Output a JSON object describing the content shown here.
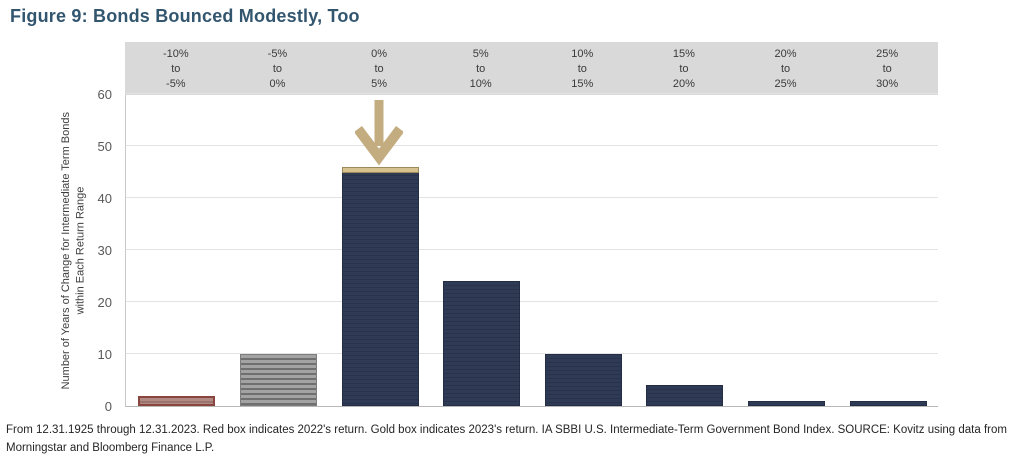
{
  "title": "Figure 9: Bonds Bounced Modestly, Too",
  "footnote": "From 12.31.1925 through 12.31.2023. Red box indicates 2022's return. Gold box indicates 2023's return. IA SBBI U.S. Intermediate-Term Government Bond Index. SOURCE: Kovitz using data from Morningstar and Bloomberg Finance L.P.",
  "chart_data": {
    "type": "bar",
    "title": "Figure 9: Bonds Bounced Modestly, Too",
    "categories": [
      "-10%\nto\n-5%",
      "-5%\nto\n0%",
      "0%\nto\n5%",
      "5%\nto\n10%",
      "10%\nto\n15%",
      "15%\nto\n20%",
      "20%\nto\n25%",
      "25%\nto\n30%"
    ],
    "values": [
      2,
      10,
      46,
      24,
      10,
      4,
      1,
      1
    ],
    "xlabel": "",
    "ylabel": "Number of Years of Change for Intermediate Term Bonds\nwithin Each Return Range",
    "ylim": [
      0,
      60
    ],
    "ytick_step": 10,
    "grid": true,
    "legend_position": "none",
    "bar_styles": [
      "red-2022",
      "gray",
      "navy-gold-2023",
      "navy",
      "navy",
      "navy",
      "navy",
      "navy"
    ],
    "annotations": [
      {
        "type": "arrow-down",
        "target_category_index": 2,
        "meaning": "2023's return"
      },
      {
        "type": "gold-box",
        "category_index": 2,
        "meaning": "Gold box indicates 2023's return"
      },
      {
        "type": "red-box",
        "category_index": 0,
        "meaning": "Red box indicates 2022's return"
      }
    ],
    "colors": {
      "navy_bar": "#2f3a55",
      "navy_bar_border": "#232d45",
      "gray_bar": "#9a9a9a",
      "red_bar_fill": "#b18a83",
      "red_bar_border": "#8a453e",
      "gold_fill": "#d7c28f",
      "gold_border": "#9c8a5a",
      "arrow": "#c3ac7f",
      "header_band_bg": "#d9d9d9",
      "title_text": "#33566f",
      "gridline": "#e3e3e3"
    }
  }
}
